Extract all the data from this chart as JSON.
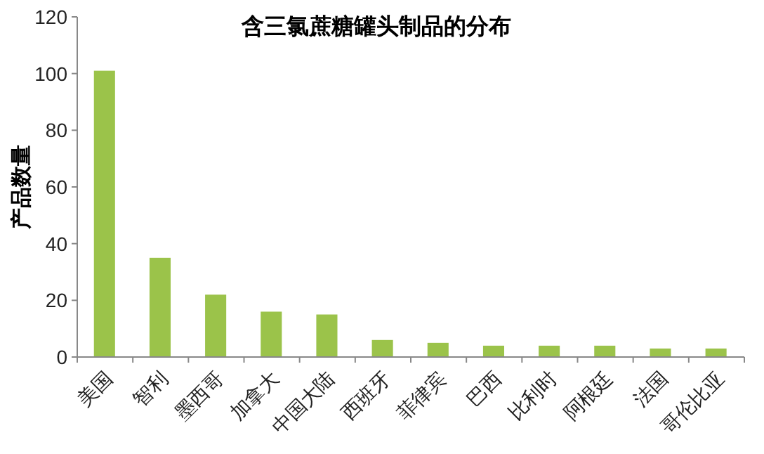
{
  "chart_data": {
    "type": "bar",
    "title": "含三氯蔗糖罐头制品的分布",
    "ylabel": "产品数量",
    "categories": [
      "美国",
      "智利",
      "墨西哥",
      "加拿大",
      "中国大陆",
      "西班牙",
      "菲律宾",
      "巴西",
      "比利时",
      "阿根廷",
      "法国",
      "哥伦比亚"
    ],
    "values": [
      101,
      35,
      22,
      16,
      15,
      6,
      5,
      4,
      4,
      4,
      3,
      3
    ],
    "color": "#9bc34a",
    "ylim": [
      0,
      120
    ],
    "yticks": [
      0,
      20,
      40,
      60,
      80,
      100,
      120
    ],
    "grid": false
  }
}
